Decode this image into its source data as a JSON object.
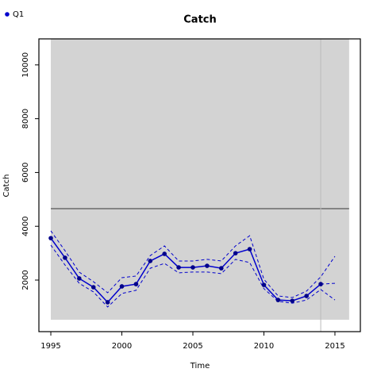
{
  "chart_data": {
    "type": "line",
    "title": "Catch",
    "x_label": "Time",
    "y_label": "Catch",
    "x": [
      1995,
      1996,
      1997,
      1998,
      1999,
      2000,
      2001,
      2002,
      2003,
      2004,
      2005,
      2006,
      2007,
      2008,
      2009,
      2010,
      2011,
      2012,
      2013,
      2014,
      2015
    ],
    "series": [
      {
        "name": "Q1",
        "color": "#0000cd",
        "values": [
          3560,
          2830,
          2060,
          1735,
          1175,
          1765,
          1850,
          2710,
          2975,
          2470,
          2470,
          2530,
          2440,
          3000,
          3150,
          1820,
          1260,
          1230,
          1410,
          1850,
          null
        ],
        "forecast": [
          null,
          null,
          null,
          null,
          null,
          null,
          null,
          null,
          null,
          null,
          null,
          null,
          null,
          null,
          null,
          null,
          null,
          null,
          null,
          null,
          1880
        ],
        "upper": [
          3830,
          3090,
          2295,
          1940,
          1530,
          2090,
          2150,
          2910,
          3270,
          2710,
          2710,
          2770,
          2710,
          3270,
          3650,
          2030,
          1410,
          1350,
          1590,
          2120,
          2885
        ],
        "lower": [
          3300,
          2560,
          1880,
          1560,
          1000,
          1500,
          1620,
          2440,
          2620,
          2270,
          2300,
          2300,
          2240,
          2770,
          2650,
          1680,
          1210,
          1140,
          1260,
          1650,
          1260
        ]
      }
    ],
    "xlim": [
      1994.16,
      2016.79
    ],
    "ylim": [
      83,
      10968
    ],
    "xticks": [
      1995,
      2000,
      2005,
      2010,
      2015
    ],
    "yticks": [
      2000,
      4000,
      6000,
      8000,
      10000
    ],
    "shaded_region": {
      "xlim": [
        1995,
        2016
      ],
      "ylim": [
        525,
        10968
      ],
      "color": "#d3d3d3"
    },
    "hline": 4655,
    "vline": 2014,
    "legend_position": "top-left"
  }
}
